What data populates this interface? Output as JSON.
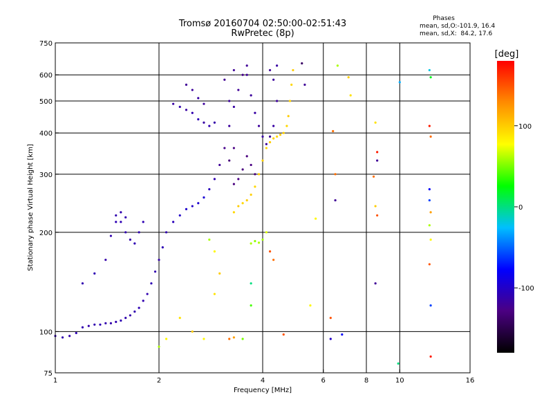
{
  "header": {
    "title_line1": "Tromsø 20160704 02:50:00-02:51:43",
    "title_line2": "RwPretec (8p)"
  },
  "phases_box": {
    "heading": "Phases",
    "line_o": "mean, sd,O:-101.9, 16.4",
    "line_x": "mean, sd,X:  84.2, 17.6"
  },
  "colorbar": {
    "label": "[deg]",
    "ticks": [
      {
        "value": 100,
        "label": "100"
      },
      {
        "value": 0,
        "label": "0"
      },
      {
        "value": -100,
        "label": "-100"
      }
    ],
    "range": [
      -180,
      180
    ],
    "colors": [
      "#000000",
      "#4b0082",
      "#0000ff",
      "#00bfff",
      "#00ff00",
      "#ffff00",
      "#ff8c00",
      "#ff0000"
    ]
  },
  "chart_data": {
    "type": "scatter",
    "title": "Tromsø 20160704 02:50:00-02:51:43",
    "subtitle": "RwPretec (8p)",
    "xlabel": "Frequency [MHz]",
    "ylabel": "Stationary phase Virtual Height [km]",
    "xscale": "log",
    "yscale": "log",
    "xlim": [
      1,
      16
    ],
    "ylim": [
      75,
      750
    ],
    "grid": true,
    "x_ticks": [
      {
        "value": 1,
        "label": "1"
      },
      {
        "value": 2,
        "label": "2"
      },
      {
        "value": 4,
        "label": "4"
      },
      {
        "value": 6,
        "label": "6"
      },
      {
        "value": 8,
        "label": "8"
      },
      {
        "value": 10,
        "label": "10"
      },
      {
        "value": 16,
        "label": "16"
      }
    ],
    "y_ticks": [
      {
        "value": 75,
        "label": "75"
      },
      {
        "value": 100,
        "label": "100"
      },
      {
        "value": 200,
        "label": "200"
      },
      {
        "value": 300,
        "label": "300"
      },
      {
        "value": 400,
        "label": "400"
      },
      {
        "value": 500,
        "label": "500"
      },
      {
        "value": 600,
        "label": "600"
      },
      {
        "value": 750,
        "label": "750"
      }
    ],
    "x_gridlines": [
      2,
      4,
      6,
      8,
      10
    ],
    "y_gridlines": [
      100,
      200,
      300,
      400,
      500,
      600
    ],
    "color_by": "phase_deg",
    "series": [
      {
        "points": [
          [
            1.0,
            97,
            -110
          ],
          [
            1.05,
            96,
            -110
          ],
          [
            1.1,
            97,
            -112
          ],
          [
            1.15,
            99,
            -108
          ],
          [
            1.2,
            103,
            -110
          ],
          [
            1.25,
            104,
            -112
          ],
          [
            1.3,
            105,
            -110
          ],
          [
            1.35,
            105,
            -108
          ],
          [
            1.4,
            106,
            -110
          ],
          [
            1.45,
            106,
            -112
          ],
          [
            1.5,
            107,
            -110
          ],
          [
            1.55,
            108,
            -108
          ],
          [
            1.6,
            110,
            -110
          ],
          [
            1.65,
            112,
            -112
          ],
          [
            1.7,
            115,
            -110
          ],
          [
            1.75,
            118,
            -108
          ],
          [
            1.8,
            124,
            -110
          ],
          [
            1.85,
            130,
            -110
          ],
          [
            1.9,
            140,
            -108
          ],
          [
            1.95,
            152,
            -110
          ],
          [
            2.0,
            165,
            -112
          ],
          [
            2.05,
            180,
            -108
          ],
          [
            2.1,
            200,
            -110
          ],
          [
            2.2,
            215,
            -105
          ],
          [
            2.3,
            225,
            -100
          ],
          [
            2.4,
            235,
            -98
          ],
          [
            2.5,
            240,
            -100
          ],
          [
            2.6,
            245,
            -97
          ],
          [
            2.7,
            255,
            -95
          ],
          [
            2.8,
            270,
            -105
          ],
          [
            2.9,
            290,
            -110
          ],
          [
            3.0,
            320,
            -120
          ],
          [
            3.1,
            360,
            -125
          ],
          [
            3.2,
            420,
            -118
          ],
          [
            3.3,
            480,
            -115
          ],
          [
            3.4,
            540,
            -120
          ],
          [
            3.5,
            600,
            -125
          ],
          [
            3.3,
            620,
            -120
          ],
          [
            3.1,
            580,
            -122
          ],
          [
            3.2,
            500,
            -118
          ],
          [
            3.6,
            640,
            -120
          ]
        ]
      },
      {
        "points": [
          [
            1.2,
            140,
            -110
          ],
          [
            1.3,
            150,
            -108
          ],
          [
            1.4,
            165,
            -112
          ],
          [
            1.45,
            195,
            -110
          ],
          [
            1.5,
            215,
            -108
          ],
          [
            1.5,
            225,
            -110
          ],
          [
            1.55,
            215,
            -108
          ],
          [
            1.6,
            200,
            -110
          ],
          [
            1.65,
            190,
            -112
          ],
          [
            1.7,
            185,
            -108
          ],
          [
            1.75,
            200,
            -110
          ],
          [
            1.8,
            215,
            -108
          ],
          [
            1.55,
            230,
            -110
          ],
          [
            1.6,
            222,
            -110
          ]
        ]
      },
      {
        "points": [
          [
            2.2,
            490,
            -115
          ],
          [
            2.3,
            480,
            -110
          ],
          [
            2.4,
            470,
            -115
          ],
          [
            2.5,
            460,
            -110
          ],
          [
            2.6,
            440,
            -108
          ],
          [
            2.7,
            430,
            -115
          ],
          [
            2.8,
            420,
            -110
          ],
          [
            2.9,
            430,
            -112
          ],
          [
            2.4,
            560,
            -120
          ],
          [
            2.5,
            540,
            -118
          ],
          [
            2.6,
            510,
            -115
          ],
          [
            2.7,
            490,
            -118
          ]
        ]
      },
      {
        "points": [
          [
            3.3,
            230,
            95
          ],
          [
            3.4,
            240,
            100
          ],
          [
            3.5,
            245,
            95
          ],
          [
            3.6,
            250,
            100
          ],
          [
            3.7,
            260,
            98
          ],
          [
            3.8,
            275,
            95
          ],
          [
            3.9,
            300,
            100
          ],
          [
            4.0,
            330,
            98
          ],
          [
            4.1,
            360,
            95
          ],
          [
            4.2,
            375,
            100
          ],
          [
            4.3,
            385,
            98
          ],
          [
            4.4,
            390,
            95
          ],
          [
            4.5,
            395,
            100
          ],
          [
            4.6,
            400,
            98
          ],
          [
            4.7,
            420,
            95
          ],
          [
            4.75,
            450,
            100
          ],
          [
            4.8,
            500,
            98
          ],
          [
            4.85,
            560,
            95
          ],
          [
            4.9,
            620,
            100
          ],
          [
            3.7,
            185,
            60
          ],
          [
            3.8,
            188,
            55
          ],
          [
            3.9,
            186,
            60
          ],
          [
            4.0,
            190,
            58
          ]
        ]
      },
      {
        "points": [
          [
            3.6,
            600,
            -120
          ],
          [
            3.7,
            520,
            -118
          ],
          [
            3.8,
            460,
            -115
          ],
          [
            3.9,
            420,
            -118
          ],
          [
            4.0,
            390,
            -115
          ],
          [
            4.1,
            370,
            -120
          ],
          [
            4.2,
            390,
            -118
          ],
          [
            4.3,
            420,
            -115
          ],
          [
            4.4,
            500,
            -118
          ],
          [
            4.2,
            620,
            -120
          ],
          [
            4.3,
            580,
            -118
          ],
          [
            4.4,
            640,
            -115
          ]
        ]
      },
      {
        "points": [
          [
            3.6,
            340,
            -130
          ],
          [
            3.7,
            320,
            -128
          ],
          [
            3.8,
            300,
            -132
          ],
          [
            3.5,
            310,
            -130
          ],
          [
            3.4,
            290,
            -128
          ],
          [
            3.3,
            280,
            -130
          ],
          [
            3.2,
            330,
            -132
          ],
          [
            3.3,
            360,
            -128
          ]
        ]
      },
      {
        "points": [
          [
            6.6,
            640,
            60
          ],
          [
            6.4,
            405,
            140
          ],
          [
            6.3,
            110,
            150
          ],
          [
            6.5,
            300,
            140
          ],
          [
            6.5,
            250,
            -120
          ],
          [
            7.1,
            590,
            100
          ],
          [
            7.2,
            520,
            90
          ],
          [
            8.5,
            430,
            90
          ],
          [
            8.6,
            350,
            170
          ],
          [
            8.6,
            330,
            -120
          ],
          [
            8.4,
            295,
            140
          ],
          [
            8.5,
            240,
            100
          ],
          [
            8.6,
            225,
            150
          ],
          [
            8.5,
            140,
            -120
          ],
          [
            9.9,
            80,
            0
          ],
          [
            10.0,
            570,
            -30
          ],
          [
            12.2,
            620,
            -20
          ],
          [
            12.3,
            590,
            20
          ],
          [
            12.2,
            420,
            170
          ],
          [
            12.3,
            390,
            140
          ],
          [
            12.2,
            270,
            -80
          ],
          [
            12.2,
            250,
            -60
          ],
          [
            12.3,
            230,
            120
          ],
          [
            12.2,
            210,
            60
          ],
          [
            12.3,
            190,
            80
          ],
          [
            12.2,
            160,
            150
          ],
          [
            12.3,
            120,
            -60
          ],
          [
            12.3,
            84,
            170
          ],
          [
            6.3,
            95,
            -100
          ],
          [
            6.8,
            98,
            -80
          ],
          [
            5.2,
            650,
            -140
          ],
          [
            5.3,
            560,
            -120
          ]
        ]
      },
      {
        "points": [
          [
            2.0,
            90,
            60
          ],
          [
            2.1,
            95,
            80
          ],
          [
            2.3,
            110,
            90
          ],
          [
            2.5,
            100,
            100
          ],
          [
            2.7,
            95,
            80
          ],
          [
            2.9,
            130,
            90
          ],
          [
            3.0,
            150,
            100
          ],
          [
            3.2,
            95,
            140
          ],
          [
            3.3,
            96,
            120
          ],
          [
            3.5,
            95,
            50
          ],
          [
            3.7,
            120,
            40
          ],
          [
            4.2,
            175,
            150
          ],
          [
            4.3,
            165,
            140
          ],
          [
            4.6,
            98,
            150
          ],
          [
            5.5,
            120,
            80
          ],
          [
            5.7,
            220,
            80
          ],
          [
            3.7,
            140,
            0
          ],
          [
            2.8,
            190,
            60
          ],
          [
            2.9,
            175,
            80
          ],
          [
            4.1,
            200,
            70
          ]
        ]
      }
    ]
  }
}
